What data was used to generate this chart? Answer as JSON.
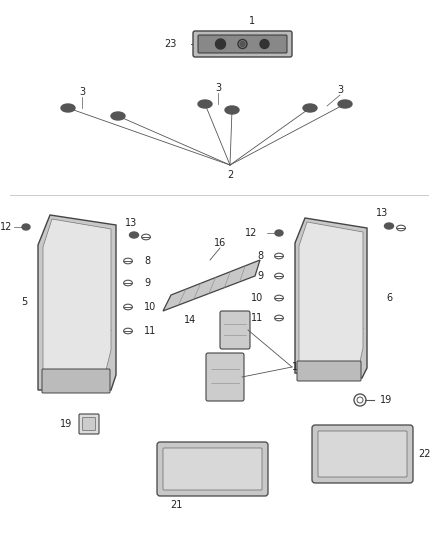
{
  "bg_color": "#ffffff",
  "lc": "#555555",
  "tc": "#222222",
  "figsize": [
    4.38,
    5.33
  ],
  "dpi": 100
}
